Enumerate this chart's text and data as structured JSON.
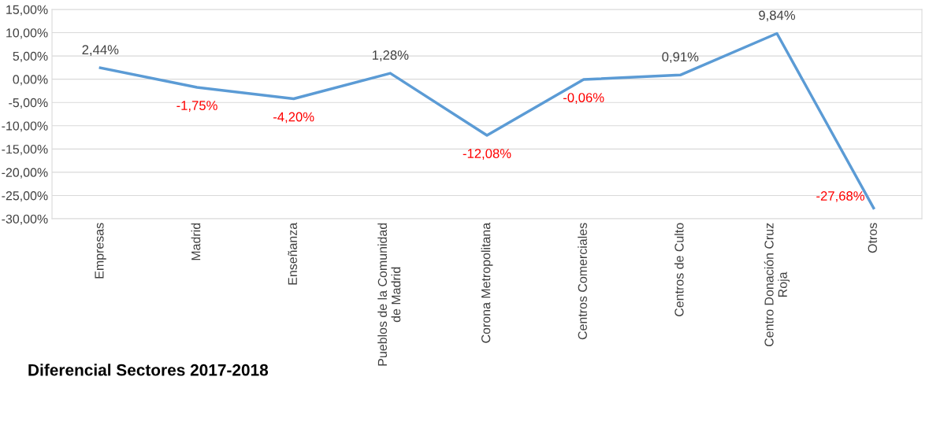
{
  "chart_data": {
    "type": "line",
    "title": "Diferencial Sectores 2017-2018",
    "categories": [
      "Empresas",
      "Madrid",
      "Enseñanza",
      "Pueblos de la Comunidad de Madrid",
      "Corona Metropolitana",
      "Centros Comerciales",
      "Centros de Culto",
      "Centro Donación Cruz Roja",
      "Otros"
    ],
    "series": [
      {
        "color": "#5b9bd5",
        "values": [
          2.44,
          -1.75,
          -4.2,
          1.28,
          -12.08,
          -0.06,
          0.91,
          9.84,
          -27.68
        ],
        "value_labels": [
          "2,44%",
          "-1,75%",
          "-4,20%",
          "1,28%",
          "-12,08%",
          "-0,06%",
          "0,91%",
          "9,84%",
          "-27,68%"
        ]
      }
    ],
    "ylim": [
      -30,
      15
    ],
    "yticks": [
      {
        "value": 15,
        "label": "15,00%"
      },
      {
        "value": 10,
        "label": "10,00%"
      },
      {
        "value": 5,
        "label": "5,00%"
      },
      {
        "value": 0,
        "label": "0,00%"
      },
      {
        "value": -5,
        "label": "-5,00%"
      },
      {
        "value": -10,
        "label": "-10,00%"
      },
      {
        "value": -15,
        "label": "-15,00%"
      },
      {
        "value": -20,
        "label": "-20,00%"
      },
      {
        "value": -25,
        "label": "-25,00%"
      },
      {
        "value": -30,
        "label": "-30,00%"
      }
    ],
    "grid": "y",
    "marker": "none",
    "line_style": "solid"
  }
}
